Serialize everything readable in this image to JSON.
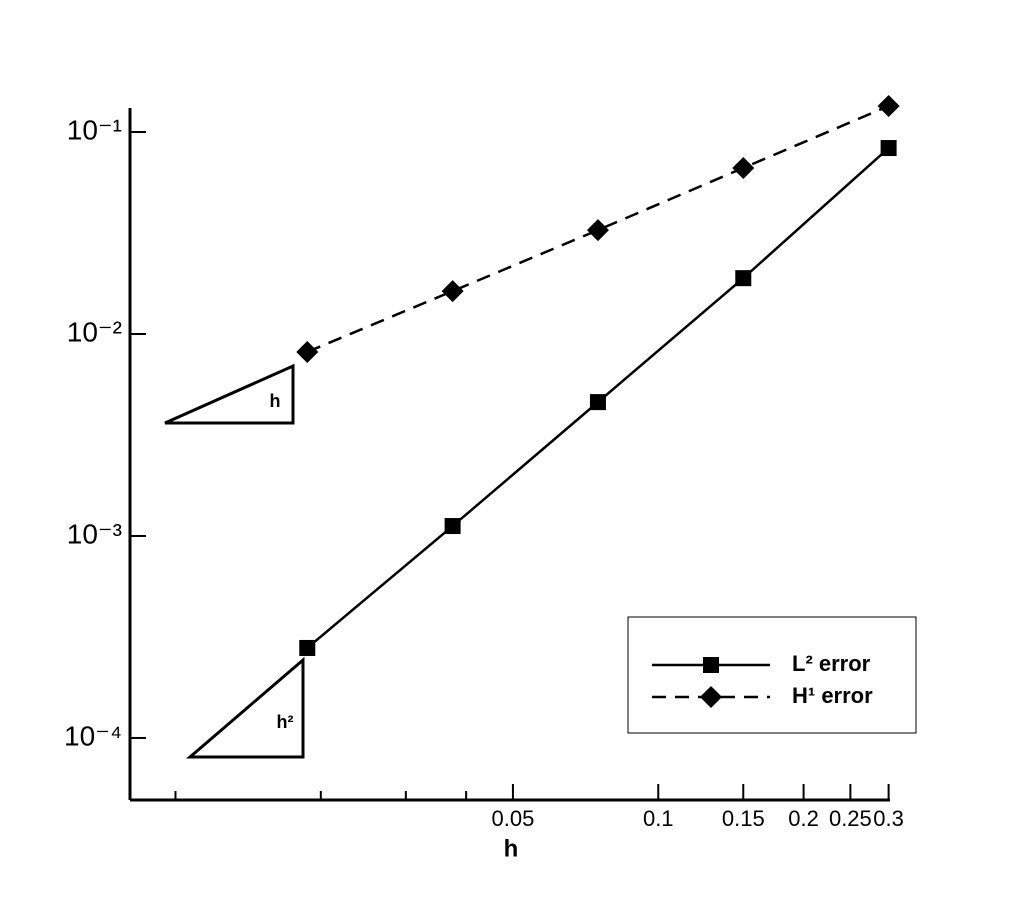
{
  "chart_data": {
    "type": "line",
    "x_label": "h",
    "x": [
      0.01875,
      0.0375,
      0.075,
      0.15,
      0.3
    ],
    "series": [
      {
        "name": "L² error",
        "color": "#000000",
        "dash": "solid",
        "marker": "square",
        "values": [
          0.000279,
          0.00112,
          0.0046,
          0.0189,
          0.0833
        ]
      },
      {
        "name": "H¹ error",
        "color": "#000000",
        "dash": "dashed",
        "marker": "diamond",
        "values": [
          0.00815,
          0.0163,
          0.0327,
          0.0664,
          0.1345
        ]
      }
    ],
    "xlim": [
      0.00805,
      0.302
    ],
    "ylim": [
      4.93e-05,
      0.1315
    ],
    "xlog": true,
    "ylog": true,
    "xticks": [
      0.05,
      0.1,
      0.15,
      0.2,
      0.25,
      0.3
    ],
    "xminorticks": [
      0.01,
      0.02,
      0.03,
      0.04
    ],
    "yticks": [
      {
        "value": 0.1,
        "label": "10⁻¹"
      },
      {
        "value": 0.01,
        "label": "10⁻²"
      },
      {
        "value": 0.001,
        "label": "10⁻³"
      },
      {
        "value": 0.0001,
        "label": "10⁻⁴"
      }
    ],
    "annotations": [
      "h",
      "h²"
    ],
    "legend": "bottom-right"
  }
}
